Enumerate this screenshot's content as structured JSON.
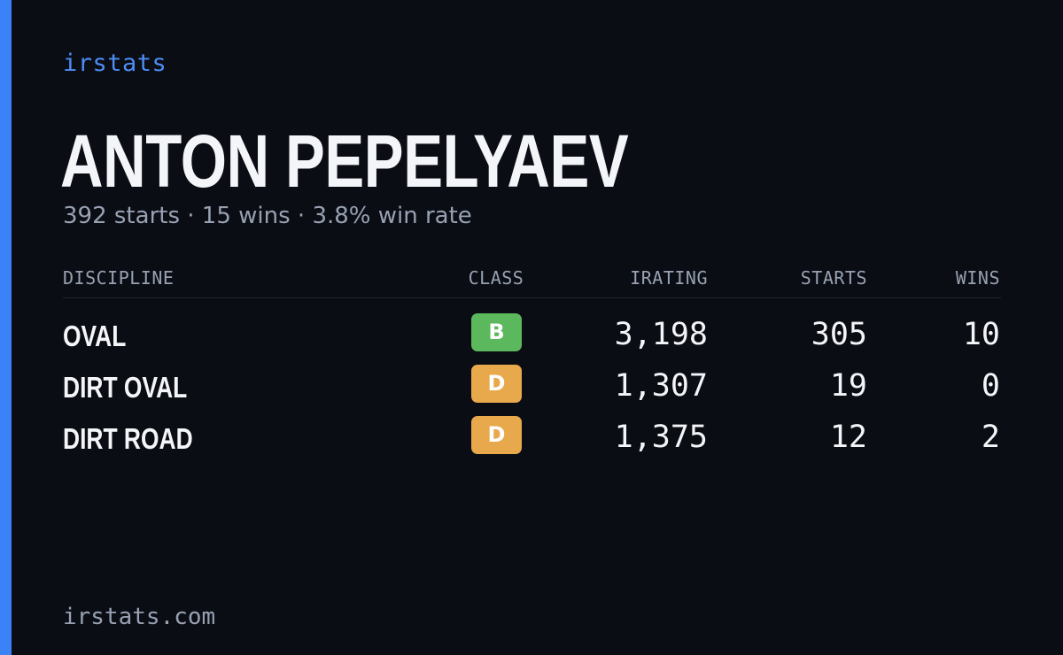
{
  "brand": "irstats",
  "driver": {
    "name": "ANTON PEPELYAEV",
    "summary": "392 starts · 15 wins · 3.8% win rate"
  },
  "table": {
    "headers": {
      "discipline": "DISCIPLINE",
      "class": "CLASS",
      "irating": "IRATING",
      "starts": "STARTS",
      "wins": "WINS"
    },
    "rows": [
      {
        "discipline": "OVAL",
        "class": "B",
        "class_color": "#5cb85c",
        "irating": "3,198",
        "starts": "305",
        "wins": "10"
      },
      {
        "discipline": "DIRT OVAL",
        "class": "D",
        "class_color": "#e8a84c",
        "irating": "1,307",
        "starts": "19",
        "wins": "0"
      },
      {
        "discipline": "DIRT ROAD",
        "class": "D",
        "class_color": "#e8a84c",
        "irating": "1,375",
        "starts": "12",
        "wins": "2"
      }
    ]
  },
  "footer": "irstats.com",
  "colors": {
    "background": "#0b0d14",
    "accent": "#3b82f6",
    "text_primary": "#f4f5f8",
    "text_muted": "#97a1b2"
  }
}
